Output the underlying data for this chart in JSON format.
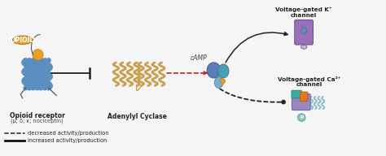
{
  "background_color": "#f5f5f5",
  "fig_width": 4.74,
  "fig_height": 1.92,
  "dpi": 100,
  "opioid_label": "OPIOID",
  "opioid_ellipse_fc": "#E8A830",
  "opioid_text_color": "#ffffff",
  "receptor_label": "Opioid receptor",
  "receptor_sublabel": "(μ; δ; κ; nociceptin)",
  "receptor_color": "#5A8FC0",
  "receptor_ball_color": "#E8A020",
  "adenylyl_label": "Adenylyl Cyclase",
  "adenylyl_color": "#C8A050",
  "camp_label": "cAMP",
  "gprotein_color_alpha": "#5A7FB8",
  "gprotein_color_beta": "#4A9EB8",
  "gprotein_color_gamma": "#7AAED0",
  "gprotein_ball_color": "#E8A020",
  "arrow_inhibit_color": "#222222",
  "arrow_decrease_color": "#CC2222",
  "kg_channel_label": "Voltage-gated K⁺",
  "kg_channel_label2": "channel",
  "kg_color_body": "#9B70B8",
  "kg_color_light": "#B890CC",
  "kg_color_pore": "#6090C0",
  "ca_channel_label": "Voltage-gated Ca²⁺",
  "ca_channel_label2": "channel",
  "ca_color_teal": "#3AABA0",
  "ca_color_purple": "#9080B8",
  "ca_color_orange": "#E07820",
  "ca_color_helix": "#8BBCC8",
  "legend_dotted_label": "decreased activity/production",
  "legend_solid_label": "increased activity/production",
  "label_fontsize": 5.5,
  "sublabel_fontsize": 4.8,
  "camp_fontsize": 5.5,
  "channel_fontsize": 5.2,
  "opioid_fontsize": 5.5,
  "legend_fontsize": 4.8
}
